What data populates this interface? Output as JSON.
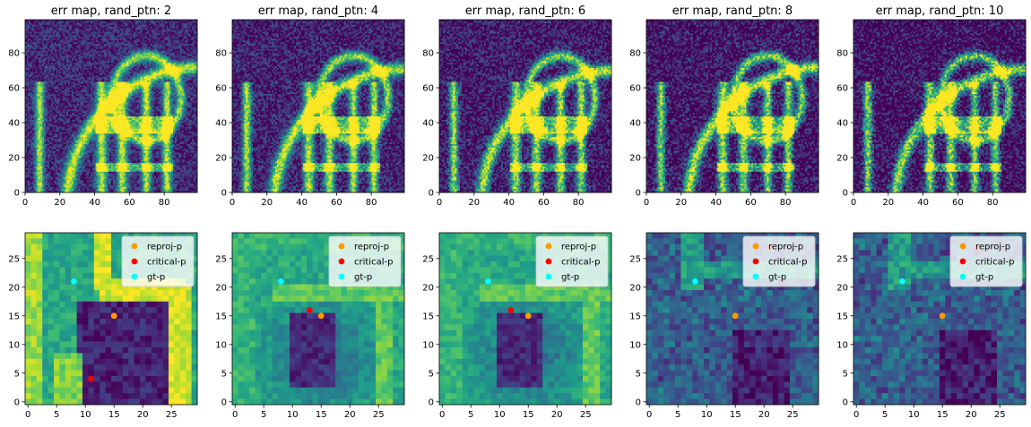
{
  "chart_data": [
    {
      "type": "heatmap",
      "title": "err map, rand_ptn: 2",
      "x_ticks": [
        0,
        20,
        40,
        60,
        80
      ],
      "y_ticks": [
        0,
        20,
        40,
        60,
        80
      ],
      "xlim": [
        0,
        99
      ],
      "ylim": [
        99,
        0
      ],
      "colormap": "viridis"
    },
    {
      "type": "heatmap",
      "title": "err map, rand_ptn: 4",
      "x_ticks": [
        0,
        20,
        40,
        60,
        80
      ],
      "y_ticks": [
        0,
        20,
        40,
        60,
        80
      ],
      "xlim": [
        0,
        99
      ],
      "ylim": [
        99,
        0
      ],
      "colormap": "viridis"
    },
    {
      "type": "heatmap",
      "title": "err map, rand_ptn: 6",
      "x_ticks": [
        0,
        20,
        40,
        60,
        80
      ],
      "y_ticks": [
        0,
        20,
        40,
        60,
        80
      ],
      "xlim": [
        0,
        99
      ],
      "ylim": [
        99,
        0
      ],
      "colormap": "viridis"
    },
    {
      "type": "heatmap",
      "title": "err map, rand_ptn: 8",
      "x_ticks": [
        0,
        20,
        40,
        60,
        80
      ],
      "y_ticks": [
        0,
        20,
        40,
        60,
        80
      ],
      "xlim": [
        0,
        99
      ],
      "ylim": [
        99,
        0
      ],
      "colormap": "viridis"
    },
    {
      "type": "heatmap",
      "title": "err map, rand_ptn: 10",
      "x_ticks": [
        0,
        20,
        40,
        60,
        80
      ],
      "y_ticks": [
        0,
        20,
        40,
        60,
        80
      ],
      "xlim": [
        0,
        99
      ],
      "ylim": [
        99,
        0
      ],
      "colormap": "viridis"
    },
    {
      "type": "scatter",
      "title": "",
      "background": "heatmap",
      "colormap": "viridis",
      "x_ticks": [
        0,
        5,
        10,
        15,
        20,
        25
      ],
      "y_ticks": [
        0,
        5,
        10,
        15,
        20,
        25
      ],
      "xlim": [
        -0.5,
        29.5
      ],
      "ylim": [
        29.5,
        -0.5
      ],
      "legend_position": "upper-right",
      "series": [
        {
          "name": "reproj-p",
          "color": "#ff9900",
          "x": [
            15
          ],
          "y": [
            15
          ]
        },
        {
          "name": "critical-p",
          "color": "#ff0000",
          "x": [
            11
          ],
          "y": [
            4
          ]
        },
        {
          "name": "gt-p",
          "color": "#00ffff",
          "x": [
            8
          ],
          "y": [
            21
          ]
        }
      ]
    },
    {
      "type": "scatter",
      "title": "",
      "background": "heatmap",
      "colormap": "viridis",
      "x_ticks": [
        0,
        5,
        10,
        15,
        20,
        25
      ],
      "y_ticks": [
        0,
        5,
        10,
        15,
        20,
        25
      ],
      "xlim": [
        -0.5,
        29.5
      ],
      "ylim": [
        29.5,
        -0.5
      ],
      "legend_position": "upper-right",
      "series": [
        {
          "name": "reproj-p",
          "color": "#ff9900",
          "x": [
            15
          ],
          "y": [
            15
          ]
        },
        {
          "name": "critical-p",
          "color": "#ff0000",
          "x": [
            13
          ],
          "y": [
            16
          ]
        },
        {
          "name": "gt-p",
          "color": "#00ffff",
          "x": [
            8
          ],
          "y": [
            21
          ]
        }
      ]
    },
    {
      "type": "scatter",
      "title": "",
      "background": "heatmap",
      "colormap": "viridis",
      "x_ticks": [
        0,
        5,
        10,
        15,
        20,
        25
      ],
      "y_ticks": [
        0,
        5,
        10,
        15,
        20,
        25
      ],
      "xlim": [
        -0.5,
        29.5
      ],
      "ylim": [
        29.5,
        -0.5
      ],
      "legend_position": "upper-right",
      "series": [
        {
          "name": "reproj-p",
          "color": "#ff9900",
          "x": [
            15
          ],
          "y": [
            15
          ]
        },
        {
          "name": "critical-p",
          "color": "#ff0000",
          "x": [
            12
          ],
          "y": [
            16
          ]
        },
        {
          "name": "gt-p",
          "color": "#00ffff",
          "x": [
            8
          ],
          "y": [
            21
          ]
        }
      ]
    },
    {
      "type": "scatter",
      "title": "",
      "background": "heatmap",
      "colormap": "viridis",
      "x_ticks": [
        0,
        5,
        10,
        15,
        20,
        25
      ],
      "y_ticks": [
        0,
        5,
        10,
        15,
        20,
        25
      ],
      "xlim": [
        -0.5,
        29.5
      ],
      "ylim": [
        29.5,
        -0.5
      ],
      "legend_position": "upper-right",
      "series": [
        {
          "name": "reproj-p",
          "color": "#ff9900",
          "x": [
            15
          ],
          "y": [
            15
          ]
        },
        {
          "name": "critical-p",
          "color": "#ff0000",
          "x": [
            21
          ],
          "y": [
            27
          ]
        },
        {
          "name": "gt-p",
          "color": "#00ffff",
          "x": [
            8
          ],
          "y": [
            21
          ]
        }
      ]
    },
    {
      "type": "scatter",
      "title": "",
      "background": "heatmap",
      "colormap": "viridis",
      "x_ticks": [
        0,
        5,
        10,
        15,
        20,
        25
      ],
      "y_ticks": [
        0,
        5,
        10,
        15,
        20,
        25
      ],
      "xlim": [
        -0.5,
        29.5
      ],
      "ylim": [
        29.5,
        -0.5
      ],
      "legend_position": "upper-right",
      "series": [
        {
          "name": "reproj-p",
          "color": "#ff9900",
          "x": [
            15
          ],
          "y": [
            15
          ]
        },
        {
          "name": "critical-p",
          "color": "#ff0000",
          "x": [
            21
          ],
          "y": [
            27
          ]
        },
        {
          "name": "gt-p",
          "color": "#00ffff",
          "x": [
            8
          ],
          "y": [
            21
          ]
        }
      ]
    }
  ]
}
